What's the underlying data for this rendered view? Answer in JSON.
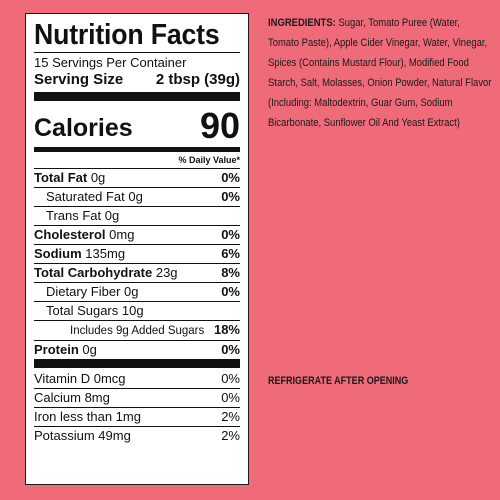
{
  "label": {
    "title": "Nutrition Facts",
    "servings_per_container": "15 Servings Per Container",
    "serving_size_label": "Serving Size",
    "serving_size_value": "2 tbsp (39g)",
    "calories_label": "Calories",
    "calories_value": "90",
    "daily_value_header": "% Daily Value*",
    "nutrients": [
      {
        "name": "Total Fat",
        "amount": "0g",
        "dv": "0%"
      },
      {
        "name": "Saturated Fat",
        "amount": "0g",
        "dv": "0%"
      },
      {
        "name": "Trans Fat",
        "amount": "0g",
        "dv": ""
      },
      {
        "name": "Cholesterol",
        "amount": "0mg",
        "dv": "0%"
      },
      {
        "name": "Sodium",
        "amount": "135mg",
        "dv": "6%"
      },
      {
        "name": "Total Carbohydrate",
        "amount": "23g",
        "dv": "8%"
      },
      {
        "name": "Dietary Fiber",
        "amount": "0g",
        "dv": "0%"
      },
      {
        "name": "Total Sugars",
        "amount": "10g",
        "dv": ""
      },
      {
        "name": "Includes 9g Added Sugars",
        "amount": "",
        "dv": "18%"
      },
      {
        "name": "Protein",
        "amount": "0g",
        "dv": "0%"
      }
    ],
    "vitamins": [
      {
        "name": "Vitamin D 0mcg",
        "dv": "0%"
      },
      {
        "name": "Calcium 8mg",
        "dv": "0%"
      },
      {
        "name": "Iron less than 1mg",
        "dv": "2%"
      },
      {
        "name": "Potassium 49mg",
        "dv": "2%"
      }
    ]
  },
  "ingredients": {
    "heading": "INGREDIENTS:",
    "text": "Sugar, Tomato Puree (Water, Tomato Paste), Apple Cider Vinegar, Water, Vinegar, Spices (Contains Mustard Flour), Modified Food Starch, Salt, Molasses, Onion Powder, Natural Flavor (Including: Maltodextrin, Guar Gum, Sodium Bicarbonate, Sunflower Oil And Yeast Extract)"
  },
  "storage_note": "REFRIGERATE AFTER OPENING",
  "colors": {
    "background": "#ef6b7a",
    "panel": "#ffffff",
    "text": "#111111"
  }
}
